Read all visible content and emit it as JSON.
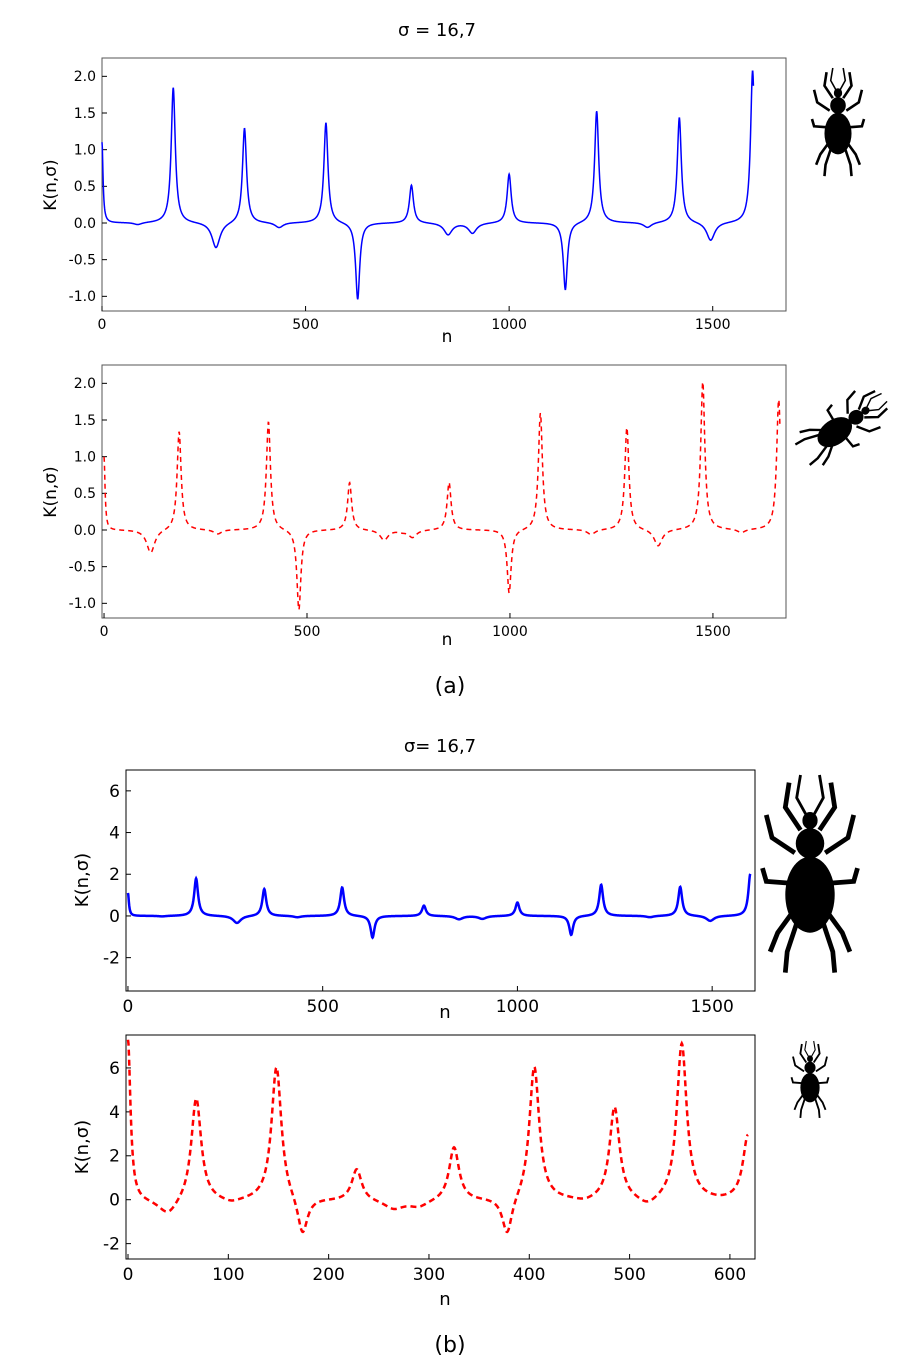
{
  "figure": {
    "panel_a": {
      "title": "σ = 16,7",
      "caption": "(a)"
    },
    "panel_b": {
      "title": "σ= 16,7",
      "caption": "(b)"
    }
  },
  "icons": [
    "beetle-top-view-icon",
    "beetle-tilted-icon",
    "beetle-large-icon",
    "beetle-small-icon"
  ],
  "chart_data": [
    {
      "panel": "(a)",
      "type": "line",
      "xlabel": "n",
      "ylabel": "K(n,σ)",
      "xlim": [
        0,
        1680
      ],
      "ylim": [
        -1.2,
        2.25
      ],
      "xticks": [
        "0",
        "500",
        "1000",
        "1500"
      ],
      "yticks": [
        "2.0",
        "1.5",
        "1.0",
        "0.5",
        "0.0",
        "-0.5",
        "-1.0"
      ],
      "color": "#0000ff",
      "line_style": "solid",
      "base_value": 0.0,
      "x_end": 1600,
      "start_value": 1.1,
      "peaks": [
        {
          "x": 175,
          "y": 1.85
        },
        {
          "x": 350,
          "y": 1.3
        },
        {
          "x": 550,
          "y": 1.37
        },
        {
          "x": 628,
          "y": -1.05
        },
        {
          "x": 760,
          "y": 0.52
        },
        {
          "x": 1000,
          "y": 0.67
        },
        {
          "x": 1138,
          "y": -0.92
        },
        {
          "x": 1215,
          "y": 1.53
        },
        {
          "x": 1418,
          "y": 1.44
        },
        {
          "x": 1598,
          "y": 2.08
        }
      ],
      "dips": [
        {
          "x": 88,
          "y": -0.03
        },
        {
          "x": 280,
          "y": -0.35
        },
        {
          "x": 435,
          "y": -0.07
        },
        {
          "x": 850,
          "y": -0.16
        },
        {
          "x": 910,
          "y": -0.14
        },
        {
          "x": 1340,
          "y": -0.07
        },
        {
          "x": 1495,
          "y": -0.25
        }
      ]
    },
    {
      "panel": "(a)",
      "type": "line",
      "xlabel": "n",
      "ylabel": "K(n,σ)",
      "xlim": [
        -5,
        1680
      ],
      "ylim": [
        -1.2,
        2.25
      ],
      "xticks": [
        "0",
        "500",
        "1000",
        "1500"
      ],
      "yticks": [
        "2.0",
        "1.5",
        "1.0",
        "0.5",
        "0.0",
        "-0.5",
        "-1.0"
      ],
      "color": "#ff0000",
      "line_style": "dashed",
      "base_value": 0.0,
      "x_end": 1665,
      "start_value": 1.0,
      "peaks": [
        {
          "x": 185,
          "y": 1.35
        },
        {
          "x": 405,
          "y": 1.48
        },
        {
          "x": 480,
          "y": -1.1
        },
        {
          "x": 605,
          "y": 0.65
        },
        {
          "x": 850,
          "y": 0.65
        },
        {
          "x": 998,
          "y": -0.87
        },
        {
          "x": 1075,
          "y": 1.6
        },
        {
          "x": 1288,
          "y": 1.4
        },
        {
          "x": 1475,
          "y": 2.02
        },
        {
          "x": 1662,
          "y": 1.78
        }
      ],
      "dips": [
        {
          "x": 115,
          "y": -0.32
        },
        {
          "x": 280,
          "y": -0.06
        },
        {
          "x": 690,
          "y": -0.14
        },
        {
          "x": 735,
          "y": -0.02
        },
        {
          "x": 760,
          "y": -0.1
        },
        {
          "x": 1200,
          "y": -0.07
        },
        {
          "x": 1365,
          "y": -0.23
        },
        {
          "x": 1570,
          "y": -0.05
        }
      ]
    },
    {
      "panel": "(b)",
      "type": "line",
      "xlabel": "n",
      "ylabel": "K(n,σ)",
      "xlim": [
        -5,
        1610
      ],
      "ylim": [
        -3.6,
        7.0
      ],
      "xticks": [
        "0",
        "500",
        "1000",
        "1500"
      ],
      "yticks": [
        "6",
        "4",
        "2",
        "0",
        "-2"
      ],
      "color": "#0000ff",
      "line_style": "solid",
      "base_value": 0.0,
      "x_end": 1598,
      "start_value": 1.1,
      "peaks": [
        {
          "x": 175,
          "y": 1.8
        },
        {
          "x": 350,
          "y": 1.3
        },
        {
          "x": 550,
          "y": 1.37
        },
        {
          "x": 628,
          "y": -1.05
        },
        {
          "x": 760,
          "y": 0.5
        },
        {
          "x": 1000,
          "y": 0.65
        },
        {
          "x": 1138,
          "y": -0.92
        },
        {
          "x": 1215,
          "y": 1.5
        },
        {
          "x": 1418,
          "y": 1.4
        },
        {
          "x": 1598,
          "y": 2.02
        }
      ],
      "dips": [
        {
          "x": 88,
          "y": -0.03
        },
        {
          "x": 280,
          "y": -0.35
        },
        {
          "x": 435,
          "y": -0.07
        },
        {
          "x": 850,
          "y": -0.16
        },
        {
          "x": 910,
          "y": -0.14
        },
        {
          "x": 1340,
          "y": -0.07
        },
        {
          "x": 1495,
          "y": -0.25
        }
      ]
    },
    {
      "panel": "(b)",
      "type": "line",
      "xlabel": "n",
      "ylabel": "K(n,σ)",
      "xlim": [
        -2,
        625
      ],
      "ylim": [
        -2.7,
        7.5
      ],
      "xticks": [
        "0",
        "100",
        "200",
        "300",
        "400",
        "500",
        "600"
      ],
      "yticks": [
        "6",
        "4",
        "2",
        "0",
        "-2"
      ],
      "color": "#ff0000",
      "line_style": "dashed",
      "base_value": -0.05,
      "x_end": 618,
      "start_value": 7.3,
      "peaks": [
        {
          "x": 68,
          "y": 4.7
        },
        {
          "x": 148,
          "y": 6.1
        },
        {
          "x": 174,
          "y": -1.8
        },
        {
          "x": 228,
          "y": 1.4
        },
        {
          "x": 325,
          "y": 2.4
        },
        {
          "x": 378,
          "y": -1.8
        },
        {
          "x": 405,
          "y": 6.1
        },
        {
          "x": 485,
          "y": 4.2
        },
        {
          "x": 552,
          "y": 7.1
        },
        {
          "x": 618,
          "y": 2.9
        }
      ],
      "dips": [
        {
          "x": 40,
          "y": -0.8
        },
        {
          "x": 103,
          "y": -0.25
        },
        {
          "x": 265,
          "y": -0.45
        },
        {
          "x": 290,
          "y": -0.35
        },
        {
          "x": 455,
          "y": -0.2
        },
        {
          "x": 518,
          "y": -0.45
        },
        {
          "x": 590,
          "y": -0.1
        }
      ]
    }
  ]
}
